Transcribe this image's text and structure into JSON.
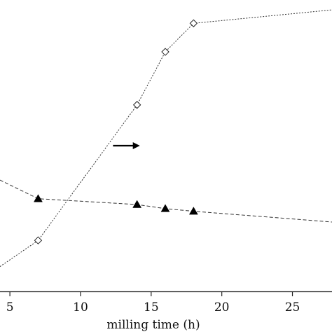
{
  "chart_data": {
    "type": "line",
    "title": "",
    "xlabel": "milling time (h)",
    "ylabel": "",
    "xlim": [
      4.3,
      27.8
    ],
    "ylim": [
      0,
      100
    ],
    "x_ticks": [
      5,
      10,
      15,
      20,
      25
    ],
    "x_tick_labels": [
      "5",
      "10",
      "15",
      "20",
      "25"
    ],
    "grid": false,
    "series": [
      {
        "marker": "open-diamond",
        "line_style": "dotted",
        "points": [
          [
            7,
            17.5
          ],
          [
            14,
            64.0
          ],
          [
            16,
            82.2
          ],
          [
            18,
            92.0
          ]
        ],
        "extension_left": [
          [
            4.3,
            8.5
          ]
        ],
        "extension_right": [
          [
            27.8,
            96.6
          ]
        ]
      },
      {
        "marker": "filled-triangle",
        "line_style": "dashed",
        "points": [
          [
            7,
            31.8
          ],
          [
            14,
            29.8
          ],
          [
            16,
            28.4
          ],
          [
            18,
            27.5
          ]
        ],
        "extension_left": [
          [
            4.3,
            38.2
          ]
        ],
        "extension_right": [
          [
            27.8,
            23.8
          ]
        ]
      }
    ],
    "annotations": [
      {
        "type": "arrow",
        "direction": "right",
        "from": [
          12.3,
          50.0
        ],
        "to": [
          14.2,
          50.0
        ]
      }
    ]
  }
}
